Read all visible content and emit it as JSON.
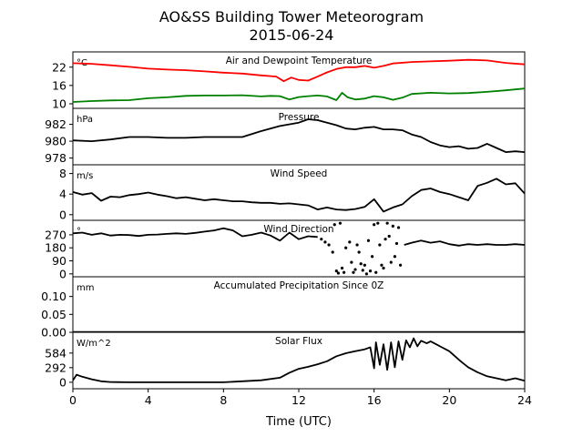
{
  "figure": {
    "title": "AO&SS Building Tower Meteorogram",
    "subtitle": "2015-06-24",
    "xlabel": "Time (UTC)"
  },
  "chart_data": {
    "type": "line",
    "x_ticks": [
      0,
      4,
      8,
      12,
      16,
      20,
      24
    ],
    "x_tick_labels": [
      "0",
      "4",
      "8",
      "12",
      "16",
      "20",
      "24"
    ],
    "xlim": [
      0,
      24
    ],
    "panels": [
      {
        "id": "temp",
        "title": "Air and Dewpoint Temperature",
        "unit": "°C",
        "ylim": [
          8.5,
          27
        ],
        "y_ticks": [
          10,
          16,
          22
        ],
        "y_tick_labels": [
          "10",
          "16",
          "22"
        ],
        "series": [
          {
            "color": "#ff0000",
            "style": "line",
            "x": [
              0,
              1,
              2,
              3,
              4,
              5,
              6,
              7,
              8,
              9,
              10,
              10.8,
              11.2,
              11.6,
              12,
              12.5,
              13,
              13.5,
              14,
              14.5,
              15,
              15.5,
              16,
              16.5,
              17,
              18,
              19,
              20,
              21,
              22,
              23,
              24
            ],
            "y": [
              23.3,
              23.1,
              22.6,
              22.1,
              21.5,
              21.2,
              21.0,
              20.6,
              20.2,
              19.9,
              19.3,
              18.9,
              17.4,
              18.6,
              17.8,
              17.6,
              18.9,
              20.3,
              21.4,
              22.0,
              22.0,
              22.4,
              21.8,
              22.4,
              23.2,
              23.7,
              23.9,
              24.1,
              24.4,
              24.2,
              23.4,
              22.9
            ]
          },
          {
            "color": "#008000",
            "style": "line",
            "x": [
              0,
              1,
              2,
              3,
              4,
              5,
              6,
              7,
              8,
              9,
              10,
              10.5,
              11,
              11.5,
              12,
              12.5,
              13,
              13.5,
              14,
              14.3,
              14.6,
              15,
              15.5,
              16,
              16.5,
              17,
              17.5,
              18,
              19,
              20,
              21,
              22,
              23,
              24
            ],
            "y": [
              10.6,
              10.9,
              11.1,
              11.2,
              11.8,
              12.1,
              12.6,
              12.7,
              12.7,
              12.8,
              12.4,
              12.6,
              12.5,
              11.4,
              12.2,
              12.5,
              12.7,
              12.4,
              11.2,
              13.6,
              12.1,
              11.4,
              11.7,
              12.5,
              12.1,
              11.3,
              12.0,
              13.2,
              13.6,
              13.4,
              13.5,
              13.9,
              14.4,
              15.0
            ]
          }
        ]
      },
      {
        "id": "pressure",
        "title": "Pressure",
        "unit": "hPa",
        "ylim": [
          977.2,
          983.9
        ],
        "y_ticks": [
          978,
          980,
          982
        ],
        "y_tick_labels": [
          "978",
          "980",
          "982"
        ],
        "series": [
          {
            "color": "#000000",
            "style": "line",
            "x": [
              0,
              1,
              2,
              3,
              4,
              5,
              6,
              7,
              8,
              9,
              10,
              11,
              12,
              12.5,
              13,
              13.5,
              14,
              14.5,
              15,
              15.5,
              16,
              16.5,
              17,
              17.5,
              18,
              18.5,
              19,
              19.5,
              20,
              20.5,
              21,
              21.5,
              22,
              22.5,
              23,
              23.5,
              24
            ],
            "y": [
              980.1,
              980.0,
              980.2,
              980.5,
              980.5,
              980.4,
              980.4,
              980.5,
              980.5,
              980.5,
              981.2,
              981.8,
              982.2,
              982.6,
              982.5,
              982.2,
              981.9,
              981.5,
              981.4,
              981.6,
              981.7,
              981.4,
              981.4,
              981.3,
              980.8,
              980.5,
              979.9,
              979.5,
              979.3,
              979.4,
              979.1,
              979.2,
              979.7,
              979.2,
              978.7,
              978.8,
              978.7
            ]
          }
        ]
      },
      {
        "id": "wind_speed",
        "title": "Wind Speed",
        "unit": "m/s",
        "ylim": [
          -1.1,
          9.7
        ],
        "y_ticks": [
          0,
          4,
          8
        ],
        "y_tick_labels": [
          "0",
          "4",
          "8"
        ],
        "series": [
          {
            "color": "#000000",
            "style": "line",
            "x": [
              0,
              0.5,
              1,
              1.5,
              2,
              2.5,
              3,
              3.5,
              4,
              4.5,
              5,
              5.5,
              6,
              6.5,
              7,
              7.5,
              8,
              8.5,
              9,
              9.5,
              10,
              10.5,
              11,
              11.5,
              12,
              12.5,
              13,
              13.5,
              14,
              14.5,
              15,
              15.5,
              16,
              16.5,
              17,
              17.5,
              18,
              18.5,
              19,
              19.5,
              20,
              20.5,
              21,
              21.5,
              22,
              22.5,
              23,
              23.5,
              24
            ],
            "y": [
              4.4,
              3.9,
              4.2,
              2.7,
              3.5,
              3.4,
              3.8,
              4.0,
              4.3,
              3.9,
              3.6,
              3.2,
              3.4,
              3.1,
              2.8,
              3.0,
              2.8,
              2.6,
              2.6,
              2.4,
              2.3,
              2.3,
              2.1,
              2.2,
              2.0,
              1.8,
              1.0,
              1.4,
              1.0,
              0.9,
              1.1,
              1.5,
              3.0,
              0.6,
              1.4,
              2.0,
              3.6,
              4.8,
              5.1,
              4.4,
              4.0,
              3.4,
              2.8,
              5.6,
              6.2,
              7.0,
              5.9,
              6.1,
              4.1
            ]
          }
        ]
      },
      {
        "id": "wind_dir",
        "title": "Wind Direction",
        "unit": "°",
        "ylim": [
          -20,
          370
        ],
        "y_ticks": [
          0,
          90,
          180,
          270
        ],
        "y_tick_labels": [
          "0",
          "90",
          "180",
          "270"
        ],
        "series": [
          {
            "color": "#000000",
            "style": "line",
            "x": [
              0,
              0.5,
              1,
              1.5,
              2,
              2.5,
              3,
              3.5,
              4,
              4.5,
              5,
              5.5,
              6,
              6.5,
              7,
              7.5,
              8,
              8.5,
              9,
              9.5,
              10,
              10.5,
              11,
              11.5,
              12,
              12.5,
              13
            ],
            "y": [
              280,
              285,
              270,
              280,
              265,
              270,
              268,
              262,
              270,
              272,
              276,
              280,
              276,
              283,
              292,
              300,
              315,
              300,
              260,
              270,
              285,
              265,
              230,
              285,
              240,
              260,
              255
            ]
          },
          {
            "color": "#000000",
            "style": "line",
            "x": [
              17.6,
              18,
              18.5,
              19,
              19.5,
              20,
              20.5,
              21,
              21.5,
              22,
              22.5,
              23,
              23.5,
              24
            ],
            "y": [
              200,
              215,
              230,
              215,
              225,
              205,
              195,
              205,
              200,
              205,
              200,
              200,
              205,
              200
            ]
          },
          {
            "color": "#000000",
            "style": "scatter",
            "x": [
              13.2,
              13.4,
              13.6,
              13.8,
              14.0,
              14.1,
              14.2,
              14.3,
              14.5,
              14.7,
              14.8,
              14.9,
              15.0,
              15.1,
              15.2,
              15.3,
              15.4,
              15.5,
              15.6,
              15.7,
              15.8,
              15.9,
              16.0,
              16.1,
              16.2,
              16.3,
              16.4,
              16.5,
              16.6,
              16.7,
              16.8,
              16.9,
              17.0,
              17.1,
              17.2,
              17.3,
              17.4,
              13.9,
              14.4
            ],
            "y": [
              240,
              220,
              200,
              150,
              20,
              5,
              350,
              40,
              180,
              220,
              80,
              10,
              30,
              200,
              150,
              70,
              25,
              60,
              0,
              230,
              20,
              120,
              340,
              10,
              350,
              200,
              60,
              40,
              240,
              350,
              260,
              80,
              330,
              120,
              210,
              320,
              60,
              340,
              10
            ]
          }
        ]
      },
      {
        "id": "precip",
        "title": "Accumulated Precipitation Since 0Z",
        "unit": "mm",
        "ylim": [
          0,
          0.155
        ],
        "y_ticks": [
          0,
          0.05,
          0.1
        ],
        "y_tick_labels": [
          "0.00",
          "0.05",
          "0.10"
        ],
        "series": [
          {
            "color": "#000000",
            "style": "line",
            "x": [
              0,
              24
            ],
            "y": [
              0,
              0
            ]
          }
        ]
      },
      {
        "id": "solar",
        "title": "Solar Flux",
        "unit": "W/m^2",
        "ylim": [
          -130,
          1000
        ],
        "y_ticks": [
          0,
          292,
          584
        ],
        "y_tick_labels": [
          "0",
          "292",
          "584"
        ],
        "series": [
          {
            "color": "#000000",
            "style": "line",
            "x": [
              0,
              0.2,
              0.5,
              1,
              1.5,
              2,
              3,
              5,
              8,
              10,
              11,
              11.5,
              12,
              12.5,
              13,
              13.5,
              14,
              14.5,
              15,
              15.5,
              15.8,
              16,
              16.1,
              16.3,
              16.5,
              16.7,
              16.9,
              17.1,
              17.3,
              17.5,
              17.7,
              17.9,
              18.1,
              18.3,
              18.5,
              18.8,
              19,
              19.3,
              19.6,
              20,
              20.3,
              20.6,
              21,
              21.5,
              22,
              22.5,
              23,
              23.5,
              24
            ],
            "y": [
              40,
              150,
              110,
              60,
              20,
              5,
              0,
              0,
              0,
              40,
              90,
              190,
              270,
              310,
              360,
              420,
              520,
              580,
              620,
              660,
              700,
              280,
              800,
              350,
              760,
              250,
              800,
              300,
              820,
              450,
              840,
              700,
              880,
              720,
              830,
              780,
              820,
              760,
              700,
              620,
              520,
              420,
              300,
              200,
              120,
              80,
              40,
              80,
              30
            ]
          }
        ]
      }
    ]
  }
}
